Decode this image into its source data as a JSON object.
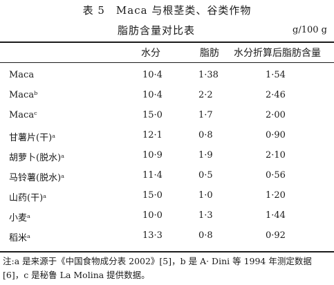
{
  "table": {
    "title": "表 5　Maca 与根茎类、谷类作物",
    "subtitle": "脂肪含量对比表",
    "unit": "g/100 g",
    "headers": [
      "",
      "水分",
      "脂肪",
      "水分折算后脂肪含量"
    ],
    "rows": [
      {
        "name": "Maca",
        "water": "10·4",
        "fat": "1·38",
        "adjusted": "1·54"
      },
      {
        "name": "Macaᵇ",
        "water": "10·4",
        "fat": "2·2",
        "adjusted": "2·46"
      },
      {
        "name": "Macaᶜ",
        "water": "15·0",
        "fat": "1·7",
        "adjusted": "2·00"
      },
      {
        "name": "甘薯片(干)ᵃ",
        "water": "12·1",
        "fat": "0·8",
        "adjusted": "0·90"
      },
      {
        "name": "胡萝卜(脱水)ᵃ",
        "water": "10·9",
        "fat": "1·9",
        "adjusted": "2·10"
      },
      {
        "name": "马铃薯(脱水)ᵃ",
        "water": "11·4",
        "fat": "0·5",
        "adjusted": "0·56"
      },
      {
        "name": "山药(干)ᵃ",
        "water": "15·0",
        "fat": "1·0",
        "adjusted": "1·20"
      },
      {
        "name": "小麦ᵃ",
        "water": "10·0",
        "fat": "1·3",
        "adjusted": "1·44"
      },
      {
        "name": "稻米ᵃ",
        "water": "13·3",
        "fat": "0·8",
        "adjusted": "0·92"
      }
    ]
  },
  "note": "注:a 是来源于《中国食物成分表 2002》[5]，b 是 A· Dini 等 1994 年测定数据[6]，c 是秘鲁 La Molina 提供数据。"
}
